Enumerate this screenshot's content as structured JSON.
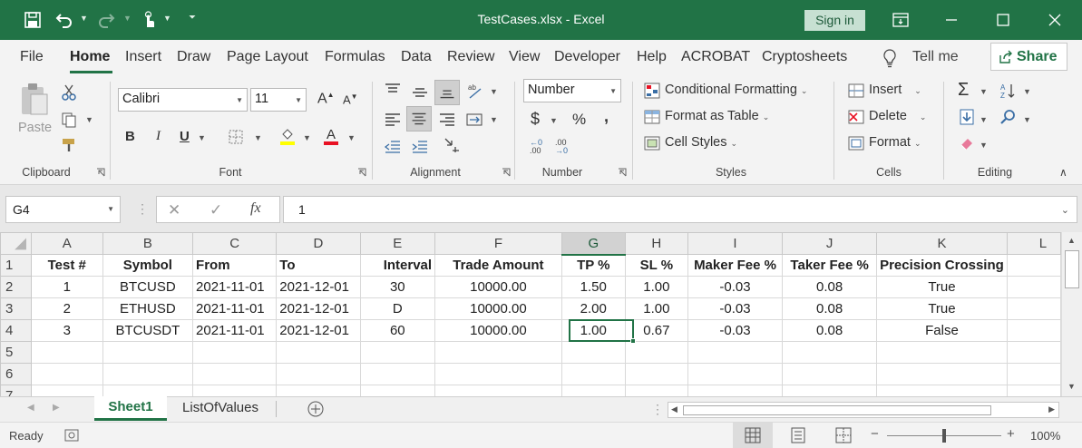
{
  "titlebar": {
    "doc_title": "TestCases.xlsx  -  Excel",
    "signin_label": "Sign in"
  },
  "ribbon_tabs": [
    "File",
    "Home",
    "Insert",
    "Draw",
    "Page Layout",
    "Formulas",
    "Data",
    "Review",
    "View",
    "Developer",
    "Help",
    "ACROBAT",
    "Cryptosheets"
  ],
  "tell_me": "Tell me",
  "share_label": "Share",
  "clipboard": {
    "paste_label": "Paste",
    "group_label": "Clipboard"
  },
  "font": {
    "name": "Calibri",
    "size": "11",
    "bold": "B",
    "italic": "I",
    "underline": "U",
    "group_label": "Font",
    "grow": "A",
    "shrink": "A"
  },
  "alignment": {
    "group_label": "Alignment"
  },
  "number": {
    "format": "Number",
    "currency": "$",
    "percent": "%",
    "comma": ",",
    "inc_decimal": ".00",
    "dec_decimal": ".00",
    "group_label": "Number"
  },
  "styles": {
    "conditional": "Conditional Formatting",
    "format_table": "Format as Table",
    "cell_styles": "Cell Styles",
    "group_label": "Styles"
  },
  "cells": {
    "insert": "Insert",
    "delete": "Delete",
    "format": "Format",
    "group_label": "Cells"
  },
  "editing": {
    "group_label": "Editing"
  },
  "formula_bar": {
    "name_box": "G4",
    "formula": "1",
    "fx": "fx"
  },
  "grid": {
    "columns": [
      "A",
      "B",
      "C",
      "D",
      "E",
      "F",
      "G",
      "H",
      "I",
      "J",
      "K",
      "L"
    ],
    "selected_column": "G",
    "row_numbers": [
      "1",
      "2",
      "3",
      "4",
      "5",
      "6",
      "7"
    ],
    "header_row": [
      "Test #",
      "Symbol",
      "From",
      "To",
      "Interval",
      "Trade Amount",
      "TP %",
      "SL %",
      "Maker Fee %",
      "Taker Fee %",
      "Precision Crossing"
    ],
    "rows": [
      [
        "1",
        "BTCUSD",
        "2021-11-01",
        "2021-12-01",
        "30",
        "10000.00",
        "1.50",
        "1.00",
        "-0.03",
        "0.08",
        "True"
      ],
      [
        "2",
        "ETHUSD",
        "2021-11-01",
        "2021-12-01",
        "D",
        "10000.00",
        "2.00",
        "1.00",
        "-0.03",
        "0.08",
        "True"
      ],
      [
        "3",
        "BTCUSDT",
        "2021-11-01",
        "2021-12-01",
        "60",
        "10000.00",
        "1.00",
        "0.67",
        "-0.03",
        "0.08",
        "False"
      ]
    ]
  },
  "sheets": [
    "Sheet1",
    "ListOfValues"
  ],
  "active_sheet": "Sheet1",
  "status": {
    "ready": "Ready",
    "zoom": "100%",
    "zoom_minus": "−",
    "zoom_plus": "+"
  },
  "colors": {
    "accent": "#217346"
  }
}
